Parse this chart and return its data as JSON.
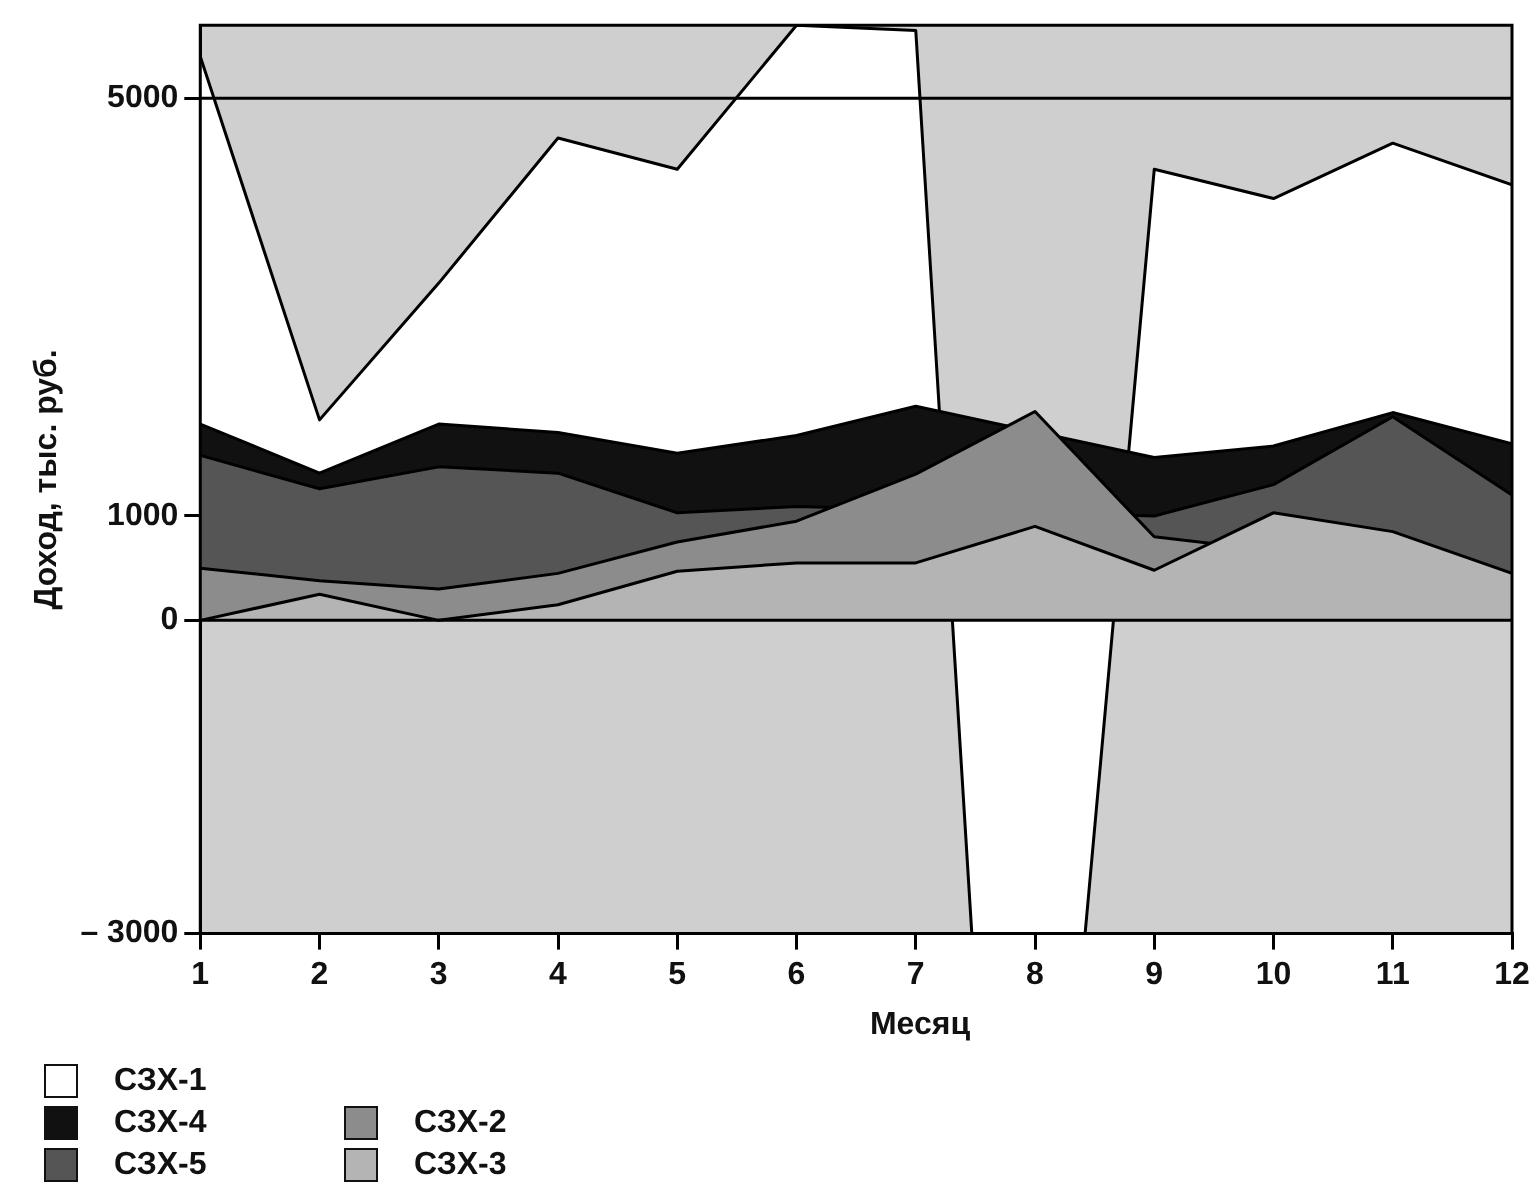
{
  "chart_data": {
    "type": "area",
    "xlabel": "Месяц",
    "ylabel": "Доход, тыс. руб.",
    "xlim": [
      1,
      12
    ],
    "xticks": [
      1,
      2,
      3,
      4,
      5,
      6,
      7,
      8,
      9,
      10,
      11,
      12
    ],
    "ylim": [
      -3000,
      5700
    ],
    "yticks": [
      {
        "value": -3000,
        "label": "– 3000"
      },
      0,
      1000,
      5000
    ],
    "grid": false,
    "legend": "bottom left",
    "ref_lines": [
      {
        "axis": "y",
        "value": 5000,
        "color": "#000000"
      },
      {
        "axis": "y",
        "value": 0,
        "color": "#000000"
      }
    ],
    "series": [
      {
        "name": "СЗХ-1",
        "color": "#ffffff",
        "x": [
          1,
          2,
          3,
          4,
          5,
          6,
          7,
          7.47,
          8.42,
          9,
          10,
          11,
          12
        ],
        "values": [
          5400,
          1920,
          3230,
          4620,
          4320,
          5700,
          5650,
          -3000,
          -3000,
          4320,
          4040,
          4570,
          4170
        ]
      },
      {
        "name": "СЗХ-4",
        "color": "#111111",
        "x": [
          1,
          2,
          3,
          4,
          5,
          6,
          7,
          8,
          9,
          10,
          11,
          12
        ],
        "values": [
          1880,
          1410,
          1880,
          1800,
          1600,
          1770,
          2050,
          null,
          1560,
          1670,
          1990,
          1690
        ]
      },
      {
        "name": "СЗХ-5",
        "color": "#555555",
        "x": [
          1,
          2,
          3,
          4,
          5,
          6,
          7,
          8,
          9,
          10,
          11,
          12
        ],
        "values": [
          1580,
          1260,
          1470,
          1410,
          1030,
          1090,
          null,
          null,
          1000,
          1300,
          1950,
          1200
        ]
      },
      {
        "name": "СЗХ-2",
        "color": "#8c8c8c",
        "x": [
          1,
          2,
          3,
          4,
          5,
          6,
          7,
          8,
          9,
          10,
          11,
          12
        ],
        "values": [
          500,
          380,
          300,
          450,
          750,
          950,
          1400,
          2000,
          800,
          null,
          null,
          400
        ]
      },
      {
        "name": "СЗХ-3",
        "color": "#b4b4b4",
        "x": [
          1,
          2,
          3,
          4,
          5,
          6,
          7,
          8,
          9,
          10,
          11,
          12
        ],
        "values": [
          0,
          250,
          0,
          150,
          470,
          550,
          550,
          900,
          480,
          1030,
          850,
          450
        ]
      }
    ]
  }
}
